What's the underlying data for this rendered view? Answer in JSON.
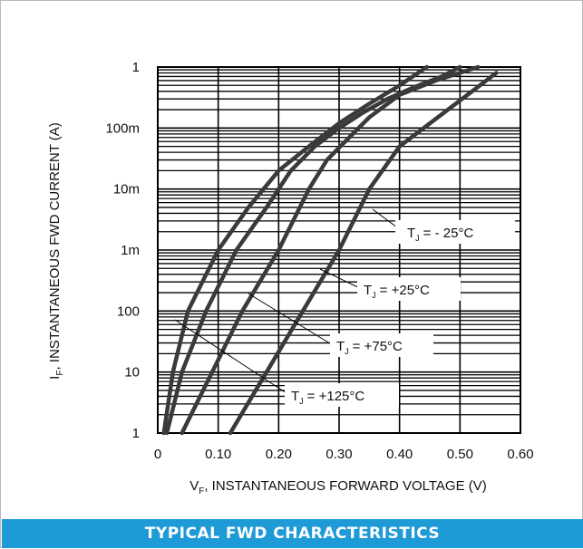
{
  "banner": {
    "title": "TYPICAL FWD CHARACTERISTICS"
  },
  "chart_data": {
    "type": "line",
    "title": "TYPICAL FWD CHARACTERISTICS",
    "xlabel": "VF, INSTANTANEOUS FORWARD VOLTAGE (V)",
    "xlabel_main": "V",
    "xlabel_sub": "F",
    "xlabel_rest": ", INSTANTANEOUS FORWARD VOLTAGE (V)",
    "ylabel": "IF, INSTANTANEOUS FWD CURRENT (A)",
    "ylabel_main": "I",
    "ylabel_sub": "F",
    "ylabel_rest": ", INSTANTANEOUS FWD CURRENT (A)",
    "xlim": [
      0,
      0.6
    ],
    "y_scale": "log",
    "x_ticks": [
      "0",
      "0.10",
      "0.20",
      "0.30",
      "0.40",
      "0.50",
      "0.60"
    ],
    "x_tick_values": [
      0,
      0.1,
      0.2,
      0.3,
      0.4,
      0.5,
      0.6
    ],
    "y_ticks": [
      "1",
      "10",
      "100",
      "1m",
      "10m",
      "100m",
      "1"
    ],
    "y_decades": 6,
    "grid": true,
    "series": [
      {
        "name": "TJ = - 25°C",
        "label_main": "T",
        "label_sub": "J",
        "label_rest": "= - 25°C",
        "x": [
          0.01,
          0.025,
          0.05,
          0.1,
          0.15,
          0.2,
          0.25,
          0.3,
          0.35,
          0.4,
          0.445
        ],
        "y": [
          1,
          10,
          100,
          1000,
          5000,
          20000,
          50000,
          120000,
          250000,
          500000,
          1000000
        ]
      },
      {
        "name": "TJ = +25°C",
        "label_main": "T",
        "label_sub": "J",
        "label_rest": "= +25°C",
        "x": [
          0.015,
          0.04,
          0.08,
          0.13,
          0.18,
          0.22,
          0.26,
          0.3,
          0.34,
          0.38,
          0.42,
          0.47,
          0.5
        ],
        "y": [
          1,
          10,
          100,
          1000,
          5000,
          20000,
          50000,
          100000,
          180000,
          300000,
          450000,
          700000,
          1000000
        ]
      },
      {
        "name": "TJ = +75°C",
        "label_main": "T",
        "label_sub": "J",
        "label_rest": "= +75°C",
        "x": [
          0.04,
          0.09,
          0.14,
          0.2,
          0.25,
          0.28,
          0.31,
          0.35,
          0.4,
          0.46,
          0.53
        ],
        "y": [
          1,
          10,
          100,
          1000,
          10000,
          30000,
          60000,
          150000,
          350000,
          600000,
          1000000
        ]
      },
      {
        "name": "TJ = +125°C",
        "label_main": "T",
        "label_sub": "J",
        "label_rest": "= +125°C",
        "x": [
          0.12,
          0.18,
          0.24,
          0.3,
          0.35,
          0.4,
          0.44,
          0.48,
          0.52,
          0.56
        ],
        "y": [
          1,
          10,
          100,
          1000,
          10000,
          50000,
          100000,
          200000,
          400000,
          800000
        ]
      }
    ]
  }
}
